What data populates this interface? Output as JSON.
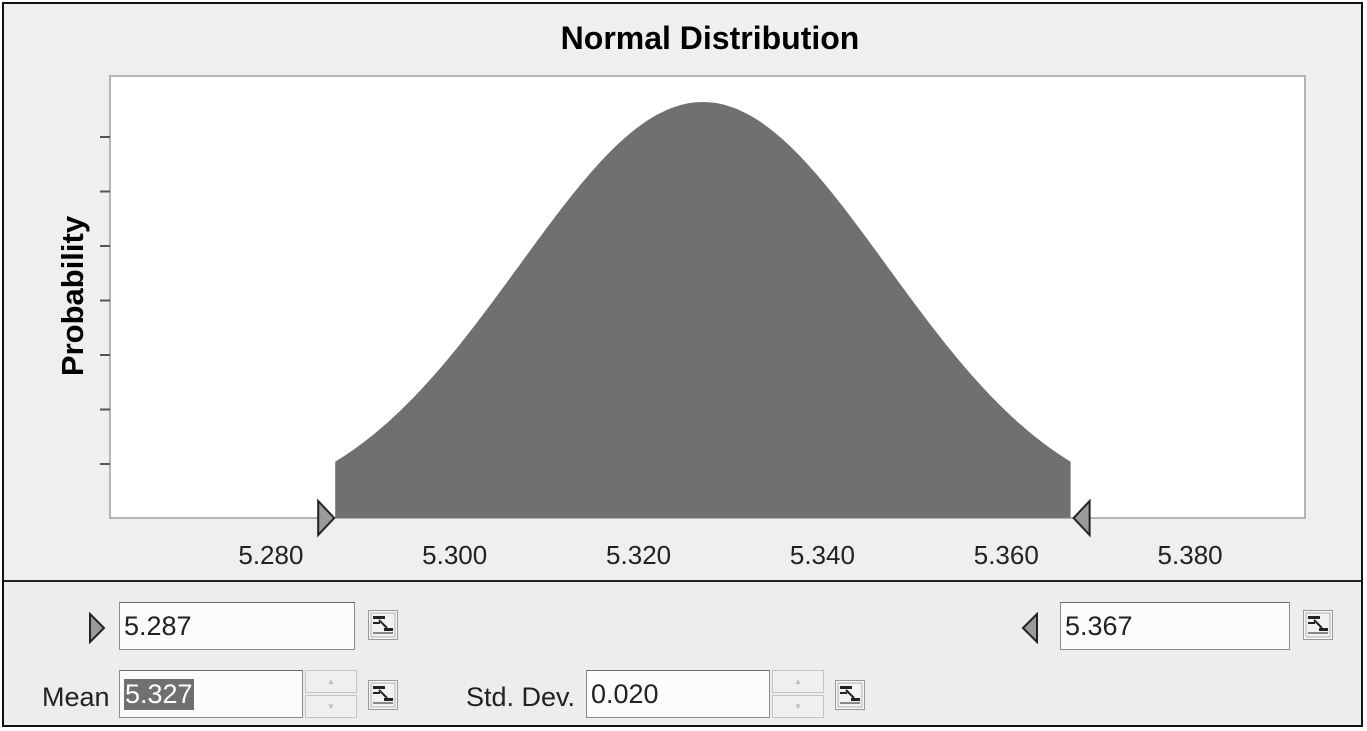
{
  "chart_data": {
    "type": "area",
    "title": "Normal Distribution",
    "ylabel": "Probability",
    "xlabel": "",
    "xlim": [
      5.2625,
      5.3925
    ],
    "x_ticks": [
      "5.280",
      "5.300",
      "5.320",
      "5.340",
      "5.360",
      "5.380"
    ],
    "x_tick_values": [
      5.28,
      5.3,
      5.32,
      5.34,
      5.36,
      5.38
    ],
    "distribution": {
      "family": "normal",
      "mean": 5.327,
      "std_dev": 0.02
    },
    "shaded_range": [
      5.287,
      5.367
    ],
    "y_minor_tick_count": 7,
    "grid": false,
    "fill_color": "#707070"
  },
  "controls": {
    "left_bound": "5.287",
    "right_bound": "5.367",
    "mean_label": "Mean",
    "mean_value": "5.327",
    "std_label": "Std. Dev.",
    "std_value": "0.020"
  },
  "colors": {
    "plot_background": "#ffffff",
    "panel_background": "#eeeeee",
    "marker_fill": "#9a9a9a"
  },
  "icons": {
    "left_marker": "right-triangle-marker",
    "right_marker": "left-triangle-marker",
    "cell_link": "cell-reference-icon",
    "spinner": "spinner-arrows"
  }
}
